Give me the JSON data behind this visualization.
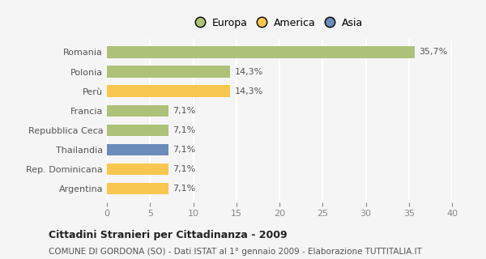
{
  "categories": [
    "Romania",
    "Polonia",
    "Perù",
    "Francia",
    "Repubblica Ceca",
    "Thailandia",
    "Rep. Dominicana",
    "Argentina"
  ],
  "values": [
    35.7,
    14.3,
    14.3,
    7.1,
    7.1,
    7.1,
    7.1,
    7.1
  ],
  "colors": [
    "#adc178",
    "#adc178",
    "#f9c74f",
    "#adc178",
    "#adc178",
    "#6b8cba",
    "#f9c74f",
    "#f9c74f"
  ],
  "labels": [
    "35,7%",
    "14,3%",
    "14,3%",
    "7,1%",
    "7,1%",
    "7,1%",
    "7,1%",
    "7,1%"
  ],
  "legend": [
    {
      "label": "Europa",
      "color": "#adc178"
    },
    {
      "label": "America",
      "color": "#f9c74f"
    },
    {
      "label": "Asia",
      "color": "#6b8cba"
    }
  ],
  "xlim": [
    0,
    40
  ],
  "xticks": [
    0,
    5,
    10,
    15,
    20,
    25,
    30,
    35,
    40
  ],
  "title": "Cittadini Stranieri per Cittadinanza - 2009",
  "subtitle": "COMUNE DI GORDONA (SO) - Dati ISTAT al 1° gennaio 2009 - Elaborazione TUTTITALIA.IT",
  "background_color": "#f5f5f5",
  "grid_color": "#ffffff"
}
